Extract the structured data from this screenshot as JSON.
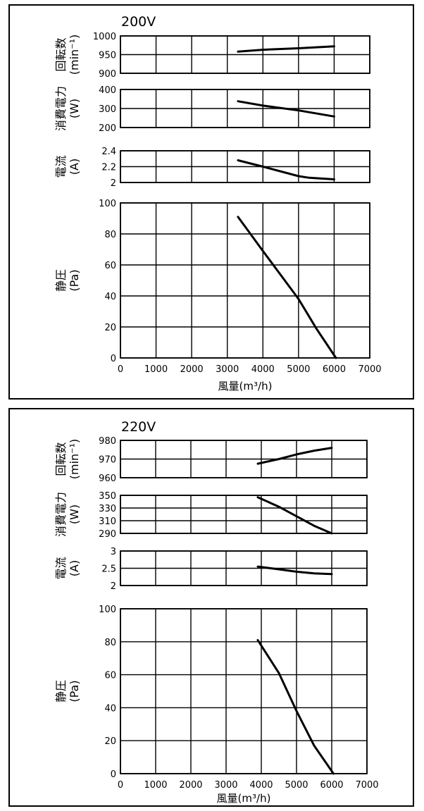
{
  "chart_data": [
    {
      "type": "line",
      "title": "200V",
      "xlabel": "風量(m³/h)",
      "x_ticks": [
        0,
        1000,
        2000,
        3000,
        4000,
        5000,
        6000,
        7000
      ],
      "xlim": [
        0,
        7000
      ],
      "grid": true,
      "panels": [
        {
          "ylabel": [
            "回転数",
            "(min⁻¹)"
          ],
          "ylim": [
            900,
            1000
          ],
          "y_ticks": [
            900,
            950,
            1000
          ],
          "series": [
            {
              "x": [
                3300,
                4000,
                5000,
                6000
              ],
              "y": [
                958,
                963,
                967,
                972
              ]
            }
          ]
        },
        {
          "ylabel": [
            "消費電力",
            "(W)"
          ],
          "ylim": [
            200,
            400
          ],
          "y_ticks": [
            200,
            300,
            400
          ],
          "series": [
            {
              "x": [
                3300,
                4000,
                5000,
                6000
              ],
              "y": [
                338,
                315,
                290,
                258
              ]
            }
          ]
        },
        {
          "ylabel": [
            "電流",
            "(A)"
          ],
          "ylim": [
            2,
            2.4
          ],
          "y_ticks": [
            2,
            2.2,
            2.4
          ],
          "series": [
            {
              "x": [
                3300,
                4000,
                5000,
                5300,
                6000
              ],
              "y": [
                2.28,
                2.2,
                2.08,
                2.06,
                2.04
              ]
            }
          ]
        },
        {
          "ylabel": [
            "静圧",
            "(Pa)"
          ],
          "ylim": [
            0,
            100
          ],
          "y_ticks": [
            0,
            20,
            40,
            60,
            80,
            100
          ],
          "series": [
            {
              "x": [
                3300,
                4000,
                5000,
                5500,
                6050
              ],
              "y": [
                91,
                69,
                38,
                19,
                0
              ]
            }
          ]
        }
      ]
    },
    {
      "type": "line",
      "title": "220V",
      "xlabel": "風量(m³/h)",
      "x_ticks": [
        0,
        1000,
        2000,
        3000,
        4000,
        5000,
        6000,
        7000
      ],
      "xlim": [
        0,
        7000
      ],
      "grid": true,
      "panels": [
        {
          "ylabel": [
            "回転数",
            "(min⁻¹)"
          ],
          "ylim": [
            960,
            980
          ],
          "y_ticks": [
            960,
            970,
            980
          ],
          "series": [
            {
              "x": [
                3900,
                4500,
                5000,
                5500,
                6000
              ],
              "y": [
                967.5,
                970,
                972.5,
                974.5,
                976
              ]
            }
          ]
        },
        {
          "ylabel": [
            "消費電力",
            "(W)"
          ],
          "ylim": [
            290,
            350
          ],
          "y_ticks": [
            290,
            310,
            330,
            350
          ],
          "series": [
            {
              "x": [
                3900,
                4500,
                5000,
                5500,
                6000
              ],
              "y": [
                347,
                332,
                317,
                302,
                290
              ]
            }
          ]
        },
        {
          "ylabel": [
            "電流",
            "(A)"
          ],
          "ylim": [
            2,
            3
          ],
          "y_ticks": [
            2,
            2.5,
            3
          ],
          "series": [
            {
              "x": [
                3900,
                4500,
                5000,
                5500,
                6000
              ],
              "y": [
                2.55,
                2.47,
                2.4,
                2.35,
                2.33
              ]
            }
          ]
        },
        {
          "ylabel": [
            "静圧",
            "(Pa)"
          ],
          "ylim": [
            0,
            100
          ],
          "y_ticks": [
            0,
            20,
            40,
            60,
            80,
            100
          ],
          "series": [
            {
              "x": [
                3900,
                4500,
                5000,
                5500,
                6050
              ],
              "y": [
                81,
                61,
                38,
                17,
                0
              ]
            }
          ]
        }
      ]
    }
  ]
}
